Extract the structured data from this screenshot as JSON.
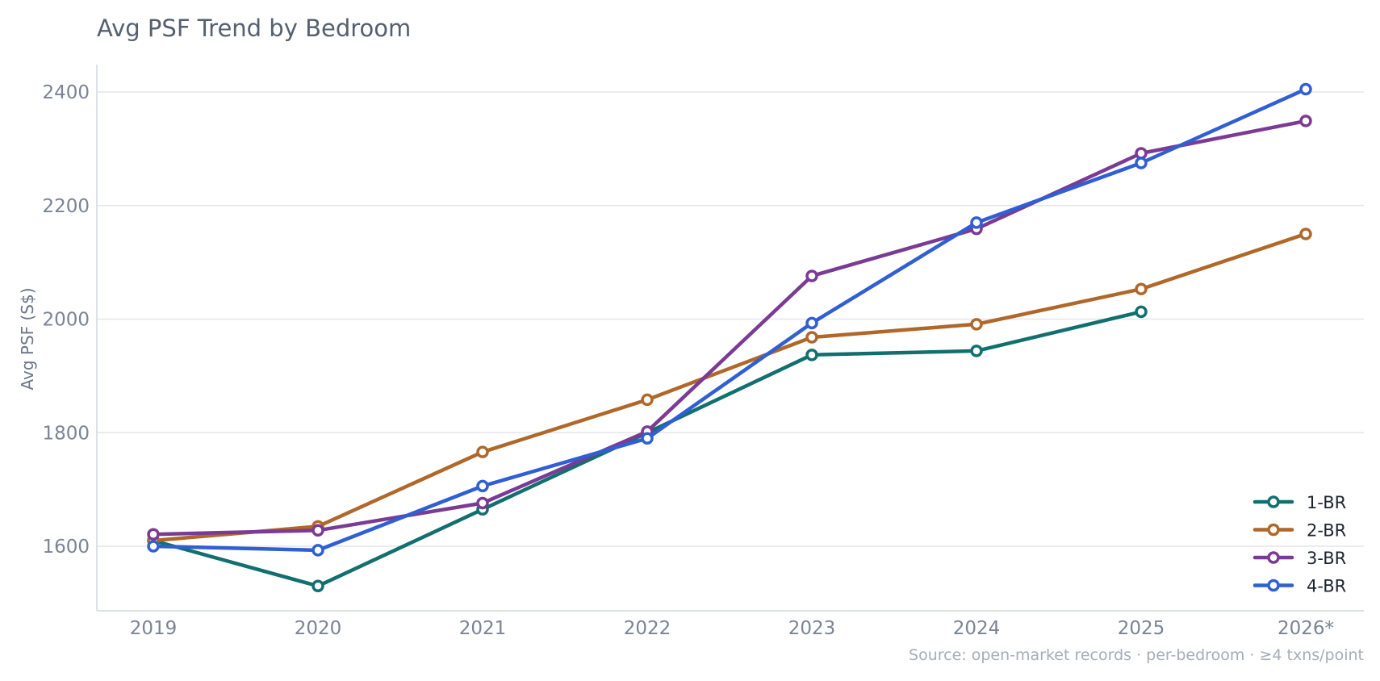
{
  "chart_data": {
    "type": "line",
    "title": "Avg PSF Trend by Bedroom",
    "xlabel": "",
    "ylabel": "Avg PSF (S$)",
    "categories": [
      "2019",
      "2020",
      "2021",
      "2022",
      "2023",
      "2024",
      "2025",
      "2026*"
    ],
    "yticks": [
      1600,
      1800,
      2000,
      2200,
      2400
    ],
    "ylim": [
      1490,
      2450
    ],
    "grid": "horizontal",
    "legend_position": "bottom-right",
    "series": [
      {
        "name": "1-BR",
        "color": "#11706f",
        "values": [
          1610,
          1530,
          1665,
          1800,
          1937,
          1944,
          2013,
          null
        ]
      },
      {
        "name": "2-BR",
        "color": "#b0672a",
        "values": [
          1610,
          1635,
          1766,
          1858,
          1968,
          1991,
          2053,
          2150
        ]
      },
      {
        "name": "3-BR",
        "color": "#7b3a94",
        "values": [
          1621,
          1628,
          1676,
          1802,
          2076,
          2159,
          2292,
          2349
        ]
      },
      {
        "name": "4-BR",
        "color": "#2f5fd3",
        "values": [
          1600,
          1593,
          1706,
          1790,
          1993,
          2170,
          2275,
          2405
        ]
      }
    ],
    "source_note": "Source: open-market records · per-bedroom · ≥4 txns/point"
  }
}
